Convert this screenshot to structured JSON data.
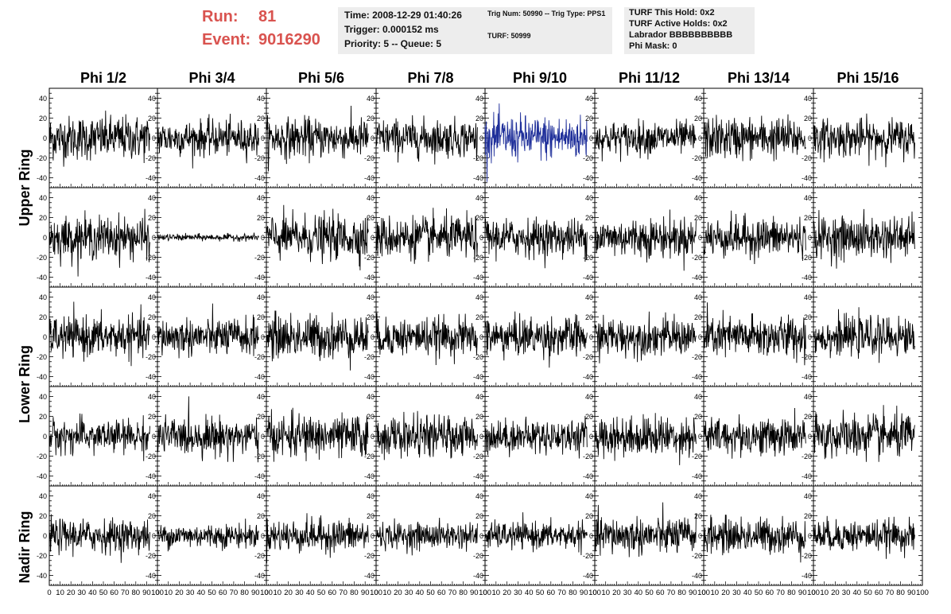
{
  "header": {
    "run_label": "Run:",
    "run_value": "81",
    "event_label": "Event:",
    "event_value": "9016290",
    "title_color": "#d9534f"
  },
  "info_boxes": {
    "time": {
      "lines": [
        "Time: 2008-12-29 01:40:26",
        "Trigger: 0.000152 ms",
        "Priority: 5 -- Queue: 5"
      ]
    },
    "trig": {
      "lines": [
        "Trig Num: 50990 -- Trig Type: PPS1",
        "TURF: 50999"
      ]
    },
    "turf": {
      "lines": [
        "TURF This Hold: 0x2",
        "TURF Active Holds: 0x2",
        "Labrador BBBBBBBBBB",
        "Phi Mask: 0"
      ]
    }
  },
  "columns": [
    "Phi 1/2",
    "Phi 3/4",
    "Phi 5/6",
    "Phi 7/8",
    "Phi 9/10",
    "Phi 11/12",
    "Phi 13/14",
    "Phi 15/16"
  ],
  "rings": [
    "Upper Ring",
    "Lower Ring",
    "Nadir Ring"
  ],
  "chart_data": {
    "type": "line",
    "grid_rows": 5,
    "grid_cols": 8,
    "x_ticks": [
      "0",
      "10",
      "20",
      "30",
      "40",
      "50",
      "60",
      "70",
      "80",
      "90",
      "100"
    ],
    "x_tick_values": [
      0,
      10,
      20,
      30,
      40,
      50,
      60,
      70,
      80,
      90,
      100
    ],
    "y_ticks": [
      -40,
      -20,
      0,
      20,
      40
    ],
    "xlim": [
      0,
      100
    ],
    "ylim": [
      -50,
      50
    ],
    "samples_per_trace": 260,
    "x_max_sample": 93,
    "trace_color": "#000000",
    "highlight_color": "#1f2f9a",
    "highlight_panel": {
      "row": 0,
      "col": 4
    },
    "panel_amplitudes": [
      [
        20,
        16,
        18,
        17,
        20,
        15,
        19,
        17
      ],
      [
        19,
        3,
        20,
        19,
        17,
        18,
        18,
        19
      ],
      [
        18,
        17,
        20,
        17,
        18,
        17,
        19,
        17
      ],
      [
        15,
        17,
        19,
        18,
        15,
        18,
        17,
        20
      ],
      [
        15,
        11,
        15,
        12,
        12,
        17,
        16,
        14
      ]
    ]
  }
}
